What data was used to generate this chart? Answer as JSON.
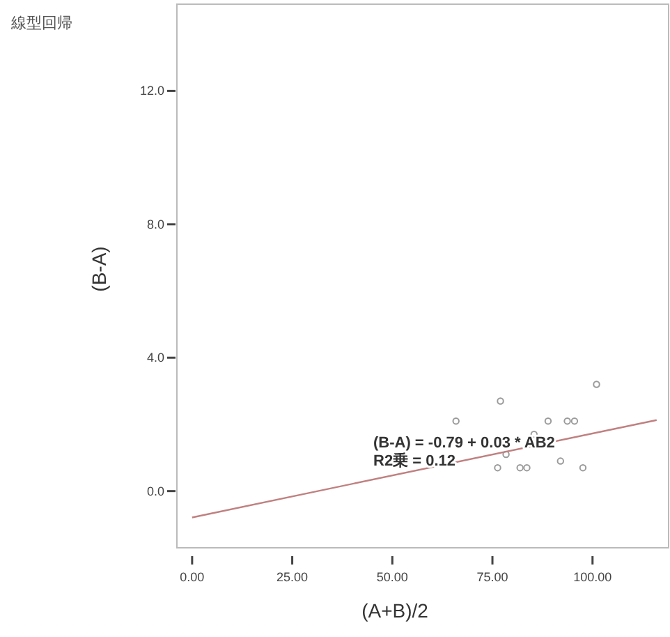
{
  "chart_data": {
    "type": "scatter",
    "title": "線型回帰",
    "xlabel": "(A+B)/2",
    "ylabel": "(B-A)",
    "xlim": [
      -3.8,
      119
    ],
    "ylim": [
      -1.7,
      14.6
    ],
    "xticks": [
      {
        "value": 0,
        "label": "0.00"
      },
      {
        "value": 25,
        "label": "25.00"
      },
      {
        "value": 50,
        "label": "50.00"
      },
      {
        "value": 75,
        "label": "75.00"
      },
      {
        "value": 100,
        "label": "100.00"
      }
    ],
    "yticks": [
      {
        "value": 0,
        "label": "0.0"
      },
      {
        "value": 4,
        "label": "4.0"
      },
      {
        "value": 8,
        "label": "8.0"
      },
      {
        "value": 12,
        "label": "12.0"
      }
    ],
    "grid": false,
    "series": [
      {
        "marker": "circle",
        "color": "#9a9a9a",
        "x": [
          101,
          77,
          65.9,
          88.9,
          93.7,
          95.5,
          78.4,
          76.3,
          81.9,
          83.6,
          92,
          97.6,
          85.4
        ],
        "values": [
          3.2,
          2.7,
          2.1,
          2.1,
          2.1,
          2.1,
          1.1,
          0.7,
          0.7,
          0.7,
          0.9,
          0.7,
          1.7
        ]
      },
      {
        "type": "line",
        "marker": "none",
        "color": "#c08080",
        "x": [
          0,
          116
        ],
        "values": [
          -0.79,
          2.13
        ],
        "line_style": "solid"
      }
    ],
    "annotations": [
      "(B-A) = -0.79 + 0.03 * AB2",
      "R2乗 = 0.12"
    ]
  }
}
